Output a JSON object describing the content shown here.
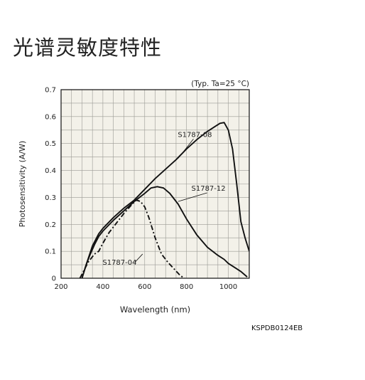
{
  "page": {
    "title": "光谱灵敏度特性",
    "code": "KSPDB0124EB"
  },
  "chart_data": {
    "type": "line",
    "condition_note": "(Typ. Ta=25 °C)",
    "xlabel": "Wavelength (nm)",
    "ylabel": "Photosensitivity (A/W)",
    "xlim": [
      200,
      1100
    ],
    "ylim": [
      0,
      0.7
    ],
    "x_ticks": [
      200,
      400,
      600,
      800,
      1000
    ],
    "y_ticks": [
      0,
      0.1,
      0.2,
      0.3,
      0.4,
      0.5,
      0.6,
      0.7
    ],
    "y_tick_labels": [
      "0",
      "0.1",
      "0.2",
      "0.3",
      "0.4",
      "0.5",
      "0.6",
      "0.7"
    ],
    "grid": true,
    "background": "#f3f1e9",
    "series": [
      {
        "name": "S1787-08",
        "style": "solid",
        "label_at": [
          840,
          0.525
        ],
        "points": [
          [
            300,
            0.0
          ],
          [
            320,
            0.05
          ],
          [
            350,
            0.12
          ],
          [
            380,
            0.165
          ],
          [
            400,
            0.185
          ],
          [
            450,
            0.225
          ],
          [
            500,
            0.26
          ],
          [
            550,
            0.29
          ],
          [
            600,
            0.33
          ],
          [
            650,
            0.37
          ],
          [
            700,
            0.405
          ],
          [
            750,
            0.44
          ],
          [
            800,
            0.48
          ],
          [
            850,
            0.515
          ],
          [
            900,
            0.545
          ],
          [
            940,
            0.565
          ],
          [
            960,
            0.575
          ],
          [
            980,
            0.578
          ],
          [
            1000,
            0.55
          ],
          [
            1020,
            0.48
          ],
          [
            1040,
            0.35
          ],
          [
            1060,
            0.21
          ],
          [
            1080,
            0.15
          ],
          [
            1100,
            0.1
          ]
        ]
      },
      {
        "name": "S1787-12",
        "style": "solid",
        "label_at": [
          905,
          0.325
        ],
        "points": [
          [
            300,
            0.0
          ],
          [
            320,
            0.05
          ],
          [
            340,
            0.09
          ],
          [
            360,
            0.125
          ],
          [
            380,
            0.155
          ],
          [
            400,
            0.175
          ],
          [
            450,
            0.215
          ],
          [
            500,
            0.25
          ],
          [
            550,
            0.285
          ],
          [
            600,
            0.315
          ],
          [
            630,
            0.335
          ],
          [
            660,
            0.34
          ],
          [
            690,
            0.335
          ],
          [
            720,
            0.315
          ],
          [
            760,
            0.275
          ],
          [
            800,
            0.22
          ],
          [
            850,
            0.16
          ],
          [
            900,
            0.115
          ],
          [
            950,
            0.085
          ],
          [
            980,
            0.07
          ],
          [
            1000,
            0.055
          ],
          [
            1030,
            0.04
          ],
          [
            1060,
            0.025
          ],
          [
            1090,
            0.005
          ]
        ]
      },
      {
        "name": "S1787-04",
        "style": "dashdot",
        "label_at": [
          480,
          0.05
        ],
        "points": [
          [
            290,
            0.0
          ],
          [
            310,
            0.03
          ],
          [
            330,
            0.06
          ],
          [
            360,
            0.09
          ],
          [
            380,
            0.1
          ],
          [
            400,
            0.13
          ],
          [
            430,
            0.17
          ],
          [
            460,
            0.2
          ],
          [
            500,
            0.24
          ],
          [
            540,
            0.275
          ],
          [
            560,
            0.29
          ],
          [
            580,
            0.285
          ],
          [
            600,
            0.265
          ],
          [
            620,
            0.225
          ],
          [
            650,
            0.15
          ],
          [
            680,
            0.09
          ],
          [
            710,
            0.06
          ],
          [
            740,
            0.035
          ],
          [
            770,
            0.01
          ],
          [
            790,
            0.0
          ]
        ]
      }
    ]
  }
}
